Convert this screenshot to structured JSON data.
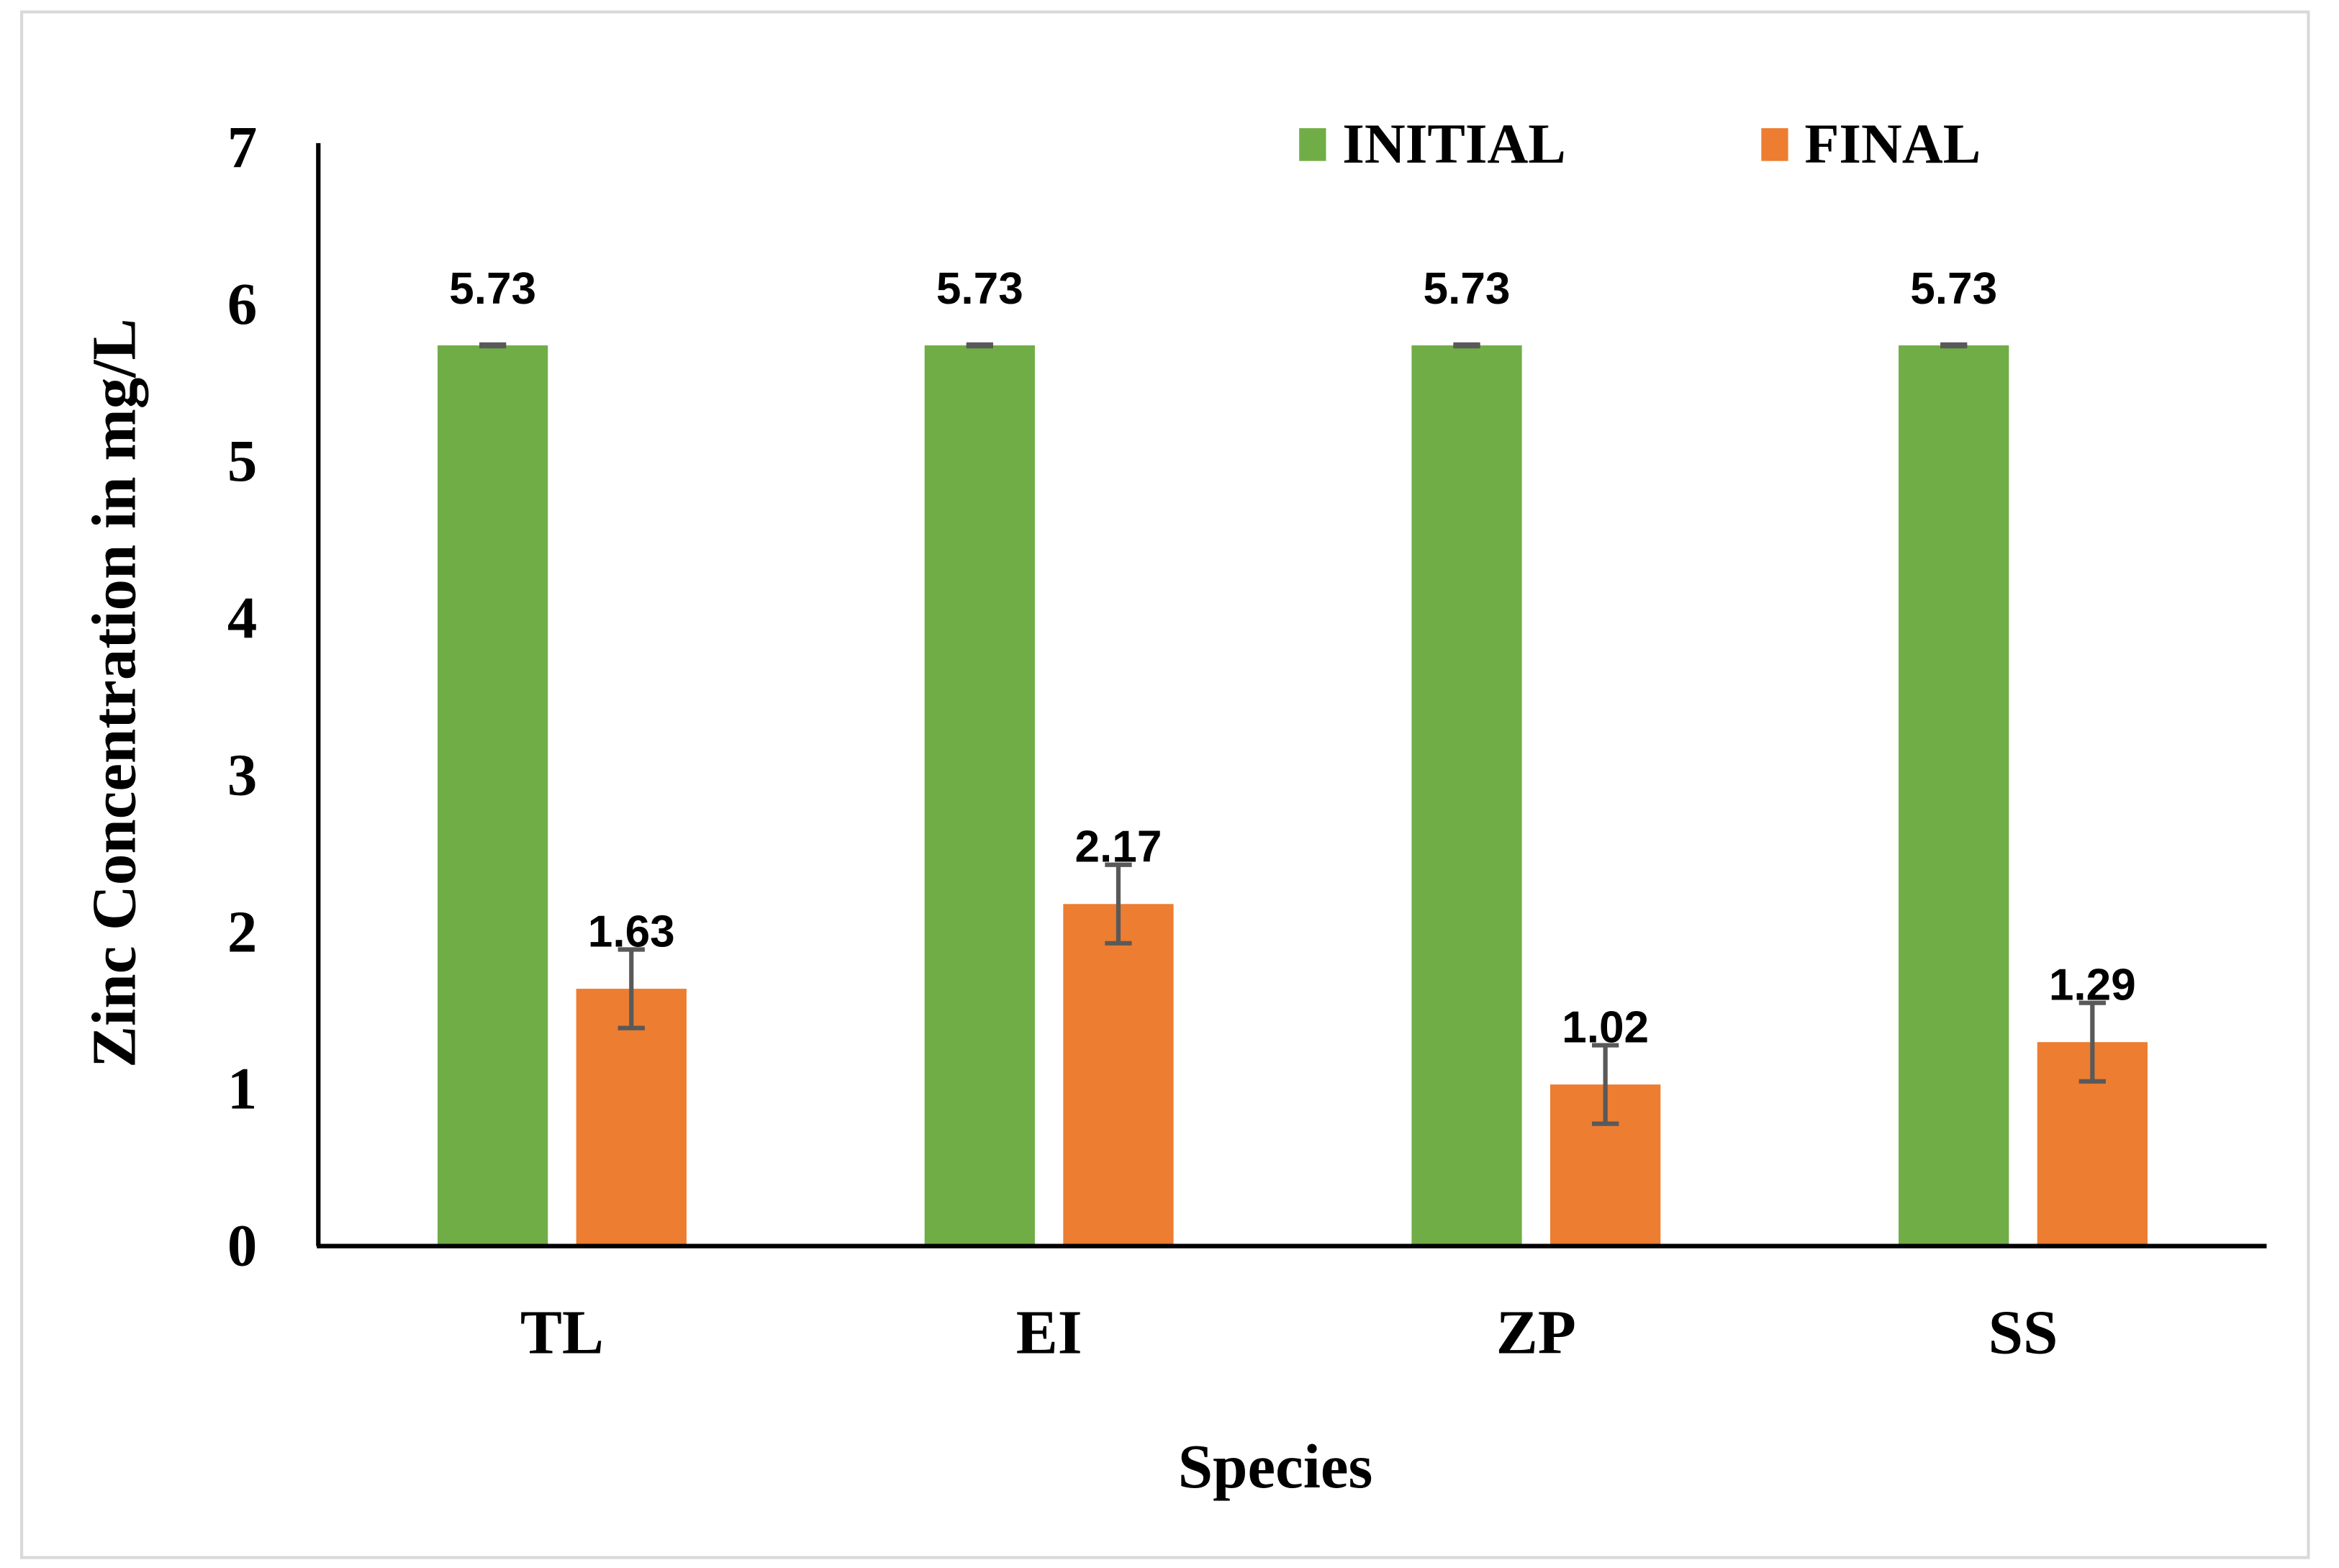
{
  "chart_data": {
    "type": "bar",
    "title": "",
    "xlabel": "Species",
    "ylabel": "Zinc Concentration in mg/L",
    "categories": [
      "TL",
      "EI",
      "ZP",
      "SS"
    ],
    "ylim": [
      0,
      7
    ],
    "yticks": [
      "0",
      "1",
      "2",
      "3",
      "4",
      "5",
      "6",
      "7"
    ],
    "grid": false,
    "legend_position": "top-right",
    "series": [
      {
        "name": "INITIAL",
        "color": "#70AD47",
        "values": [
          5.73,
          5.73,
          5.73,
          5.73
        ],
        "labels": [
          "5.73",
          "5.73",
          "5.73",
          "5.73"
        ],
        "errors": [
          0.005,
          0.005,
          0.005,
          0.005
        ]
      },
      {
        "name": "FINAL",
        "color": "#ED7D31",
        "values": [
          1.63,
          2.17,
          1.02,
          1.29
        ],
        "labels": [
          "1.63",
          "2.17",
          "1.02",
          "1.29"
        ],
        "errors": [
          0.25,
          0.25,
          0.25,
          0.25
        ]
      }
    ]
  }
}
